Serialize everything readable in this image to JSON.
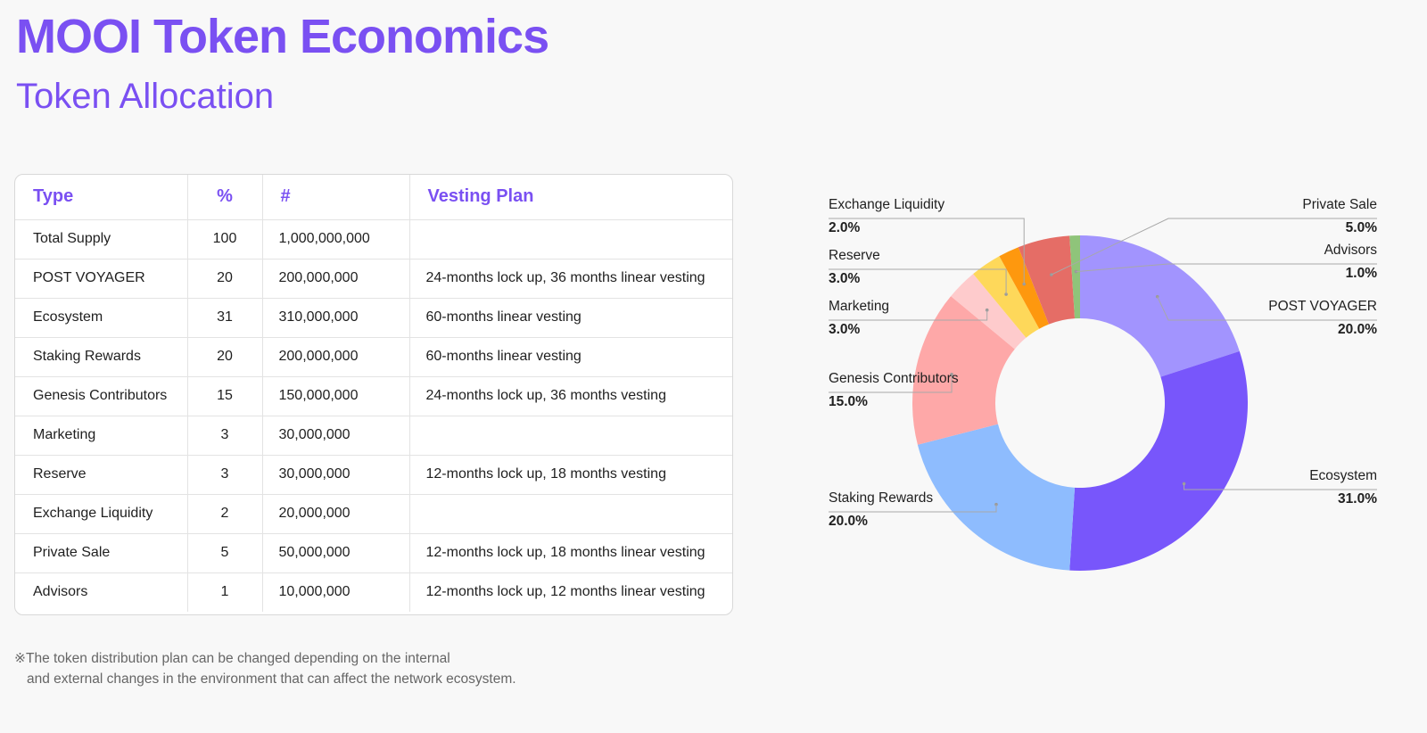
{
  "page": {
    "title": "MOOI Token Economics",
    "subtitle": "Token Allocation"
  },
  "table": {
    "headers": [
      "Type",
      "%",
      "#",
      "Vesting Plan"
    ],
    "rows": [
      [
        "Total Supply",
        "100",
        "1,000,000,000",
        ""
      ],
      [
        "POST VOYAGER",
        "20",
        "200,000,000",
        "24-months lock up, 36 months linear vesting"
      ],
      [
        "Ecosystem",
        "31",
        "310,000,000",
        "60-months linear vesting"
      ],
      [
        "Staking Rewards",
        "20",
        "200,000,000",
        "60-months linear vesting"
      ],
      [
        "Genesis Contributors",
        "15",
        "150,000,000",
        "24-months lock up, 36 months vesting"
      ],
      [
        "Marketing",
        "3",
        "30,000,000",
        ""
      ],
      [
        "Reserve",
        "3",
        "30,000,000",
        "12-months lock up, 18 months vesting"
      ],
      [
        "Exchange Liquidity",
        "2",
        "20,000,000",
        ""
      ],
      [
        "Private Sale",
        "5",
        "50,000,000",
        "12-months lock up, 18 months linear vesting"
      ],
      [
        "Advisors",
        "1",
        "10,000,000",
        "12-months lock up, 12 months linear vesting"
      ]
    ]
  },
  "footnote": {
    "line1": "※The token distribution plan can be changed depending on the internal",
    "line2": "and external changes in the environment that can affect the network ecosystem."
  },
  "chart_data": {
    "type": "pie",
    "donut": true,
    "slices": [
      {
        "name": "POST VOYAGER",
        "value": 20.0,
        "label": "20.0%",
        "color": "#a294fe"
      },
      {
        "name": "Ecosystem",
        "value": 31.0,
        "label": "31.0%",
        "color": "#7856fb"
      },
      {
        "name": "Staking Rewards",
        "value": 20.0,
        "label": "20.0%",
        "color": "#8ebcfe"
      },
      {
        "name": "Genesis Contributors",
        "value": 15.0,
        "label": "15.0%",
        "color": "#fea8a8"
      },
      {
        "name": "Marketing",
        "value": 3.0,
        "label": "3.0%",
        "color": "#fecbcc"
      },
      {
        "name": "Reserve",
        "value": 3.0,
        "label": "3.0%",
        "color": "#fed85a"
      },
      {
        "name": "Exchange Liquidity",
        "value": 2.0,
        "label": "2.0%",
        "color": "#fe980e"
      },
      {
        "name": "Private Sale",
        "value": 5.0,
        "label": "5.0%",
        "color": "#e56d66"
      },
      {
        "name": "Advisors",
        "value": 1.0,
        "label": "1.0%",
        "color": "#8fc47a"
      }
    ]
  }
}
